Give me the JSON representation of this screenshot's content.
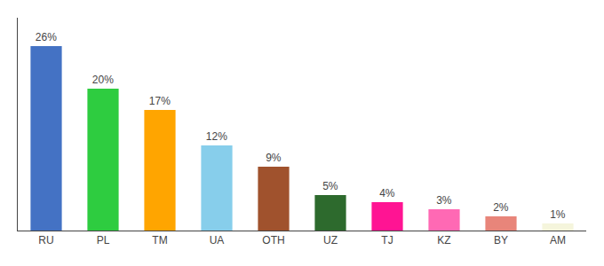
{
  "chart_data": {
    "type": "bar",
    "categories": [
      "RU",
      "PL",
      "TM",
      "UA",
      "OTH",
      "UZ",
      "TJ",
      "KZ",
      "BY",
      "AM"
    ],
    "values": [
      26,
      20,
      17,
      12,
      9,
      5,
      4,
      3,
      2,
      1
    ],
    "value_labels": [
      "26%",
      "20%",
      "17%",
      "12%",
      "9%",
      "5%",
      "4%",
      "3%",
      "2%",
      "1%"
    ],
    "colors": [
      "#4472C4",
      "#2ECC40",
      "#FFA500",
      "#87CEEB",
      "#A0522D",
      "#2D6A2D",
      "#FF1493",
      "#FF69B4",
      "#E8857A",
      "#F5F5DC"
    ],
    "ylim": [
      0,
      30
    ],
    "data_labels": true,
    "tick_labels": "x",
    "grid": false
  }
}
